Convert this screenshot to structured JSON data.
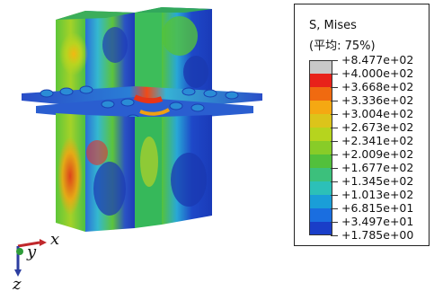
{
  "legend": {
    "title_line1": "S, Mises",
    "title_line2": "(平均: 75%)",
    "levels": [
      "+8.477e+02",
      "+4.000e+02",
      "+3.668e+02",
      "+3.336e+02",
      "+3.004e+02",
      "+2.673e+02",
      "+2.341e+02",
      "+2.009e+02",
      "+1.677e+02",
      "+1.345e+02",
      "+1.013e+02",
      "+6.815e+01",
      "+3.497e+01",
      "+1.785e+00"
    ],
    "colors": [
      "#c8c8c8",
      "#e8221a",
      "#f06a10",
      "#f5a812",
      "#dcc41a",
      "#b6d41e",
      "#88cc28",
      "#52c03c",
      "#3cc07c",
      "#2cc0b8",
      "#1a9ed8",
      "#1a6ee0",
      "#1a3ec8"
    ]
  },
  "triad": {
    "x_label": "x",
    "y_label": "y",
    "z_label": "z"
  },
  "colors": {
    "axis_x": "#c0282c",
    "axis_y": "#2e9c3a",
    "axis_z": "#2c3ea0"
  }
}
